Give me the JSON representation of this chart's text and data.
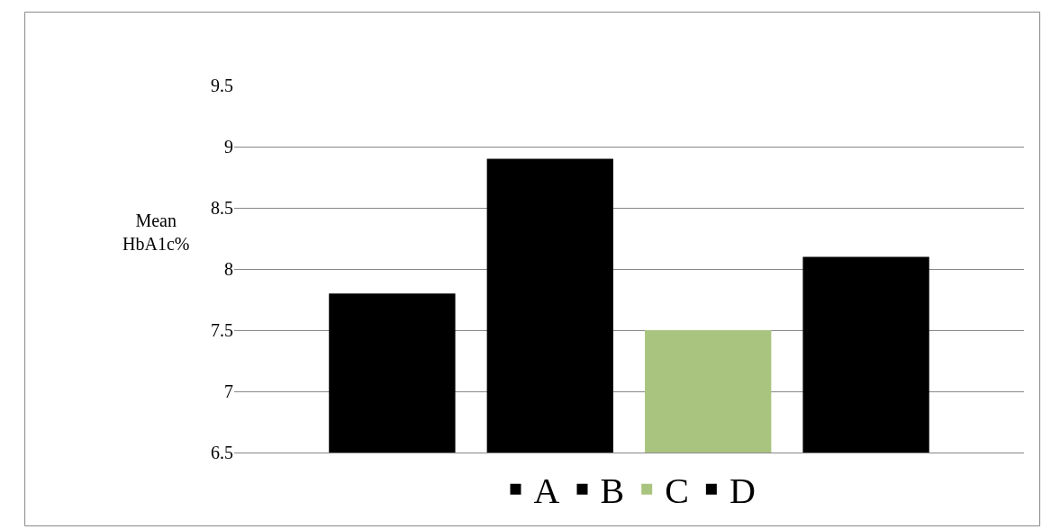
{
  "chart_data": {
    "type": "bar",
    "ylabel": "Mean\nHbA1c%",
    "categories": [
      null,
      null,
      null,
      null
    ],
    "series": [
      {
        "name": "A",
        "color": "#000000",
        "values": [
          7.8,
          null,
          null,
          null
        ]
      },
      {
        "name": "B",
        "color": "#000000",
        "values": [
          null,
          8.9,
          null,
          null
        ]
      },
      {
        "name": "C",
        "color": "#a9c47f",
        "values": [
          null,
          null,
          7.5,
          null
        ]
      },
      {
        "name": "D",
        "color": "#000000",
        "values": [
          null,
          null,
          null,
          8.1
        ]
      }
    ],
    "ylim": [
      6.5,
      9.5
    ],
    "yticks": [
      6.5,
      7,
      7.5,
      8,
      8.5,
      9,
      9.5
    ],
    "grid": "y",
    "legend": "bottom"
  }
}
